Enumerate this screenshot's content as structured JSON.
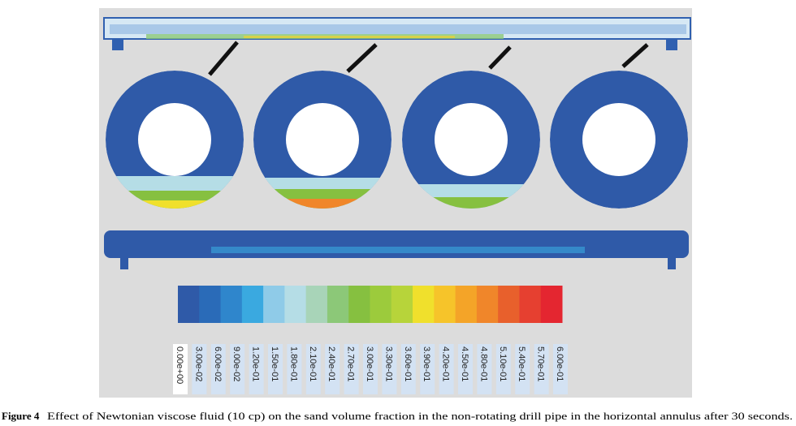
{
  "figure": {
    "colorbar": {
      "colors": [
        "#2f5aa8",
        "#2a6bb8",
        "#2f86cc",
        "#3aa9e0",
        "#8fcbe8",
        "#b5dde6",
        "#a8d4b8",
        "#8cc878",
        "#86c040",
        "#9ccb3c",
        "#b7d43a",
        "#f0e02c",
        "#f6c42a",
        "#f4a428",
        "#f0862a",
        "#e8602c",
        "#e64030",
        "#e42630"
      ],
      "labels": [
        "0.00e+00",
        "3.00e-02",
        "6.00e-02",
        "9.00e-02",
        "1.20e-01",
        "1.50e-01",
        "1.80e-01",
        "2.10e-01",
        "2.40e-01",
        "2.70e-01",
        "3.00e-01",
        "3.30e-01",
        "3.60e-01",
        "3.90e-01",
        "4.20e-01",
        "4.50e-01",
        "4.80e-01",
        "5.10e-01",
        "5.40e-01",
        "5.70e-01",
        "6.00e-01"
      ]
    },
    "caption": {
      "label": "Figure 4",
      "text": "Effect of Newtonian viscose fluid (10 cp) on the sand volume fraction in the non-rotating drill pipe in the horizontal annulus after 30 seconds."
    }
  }
}
